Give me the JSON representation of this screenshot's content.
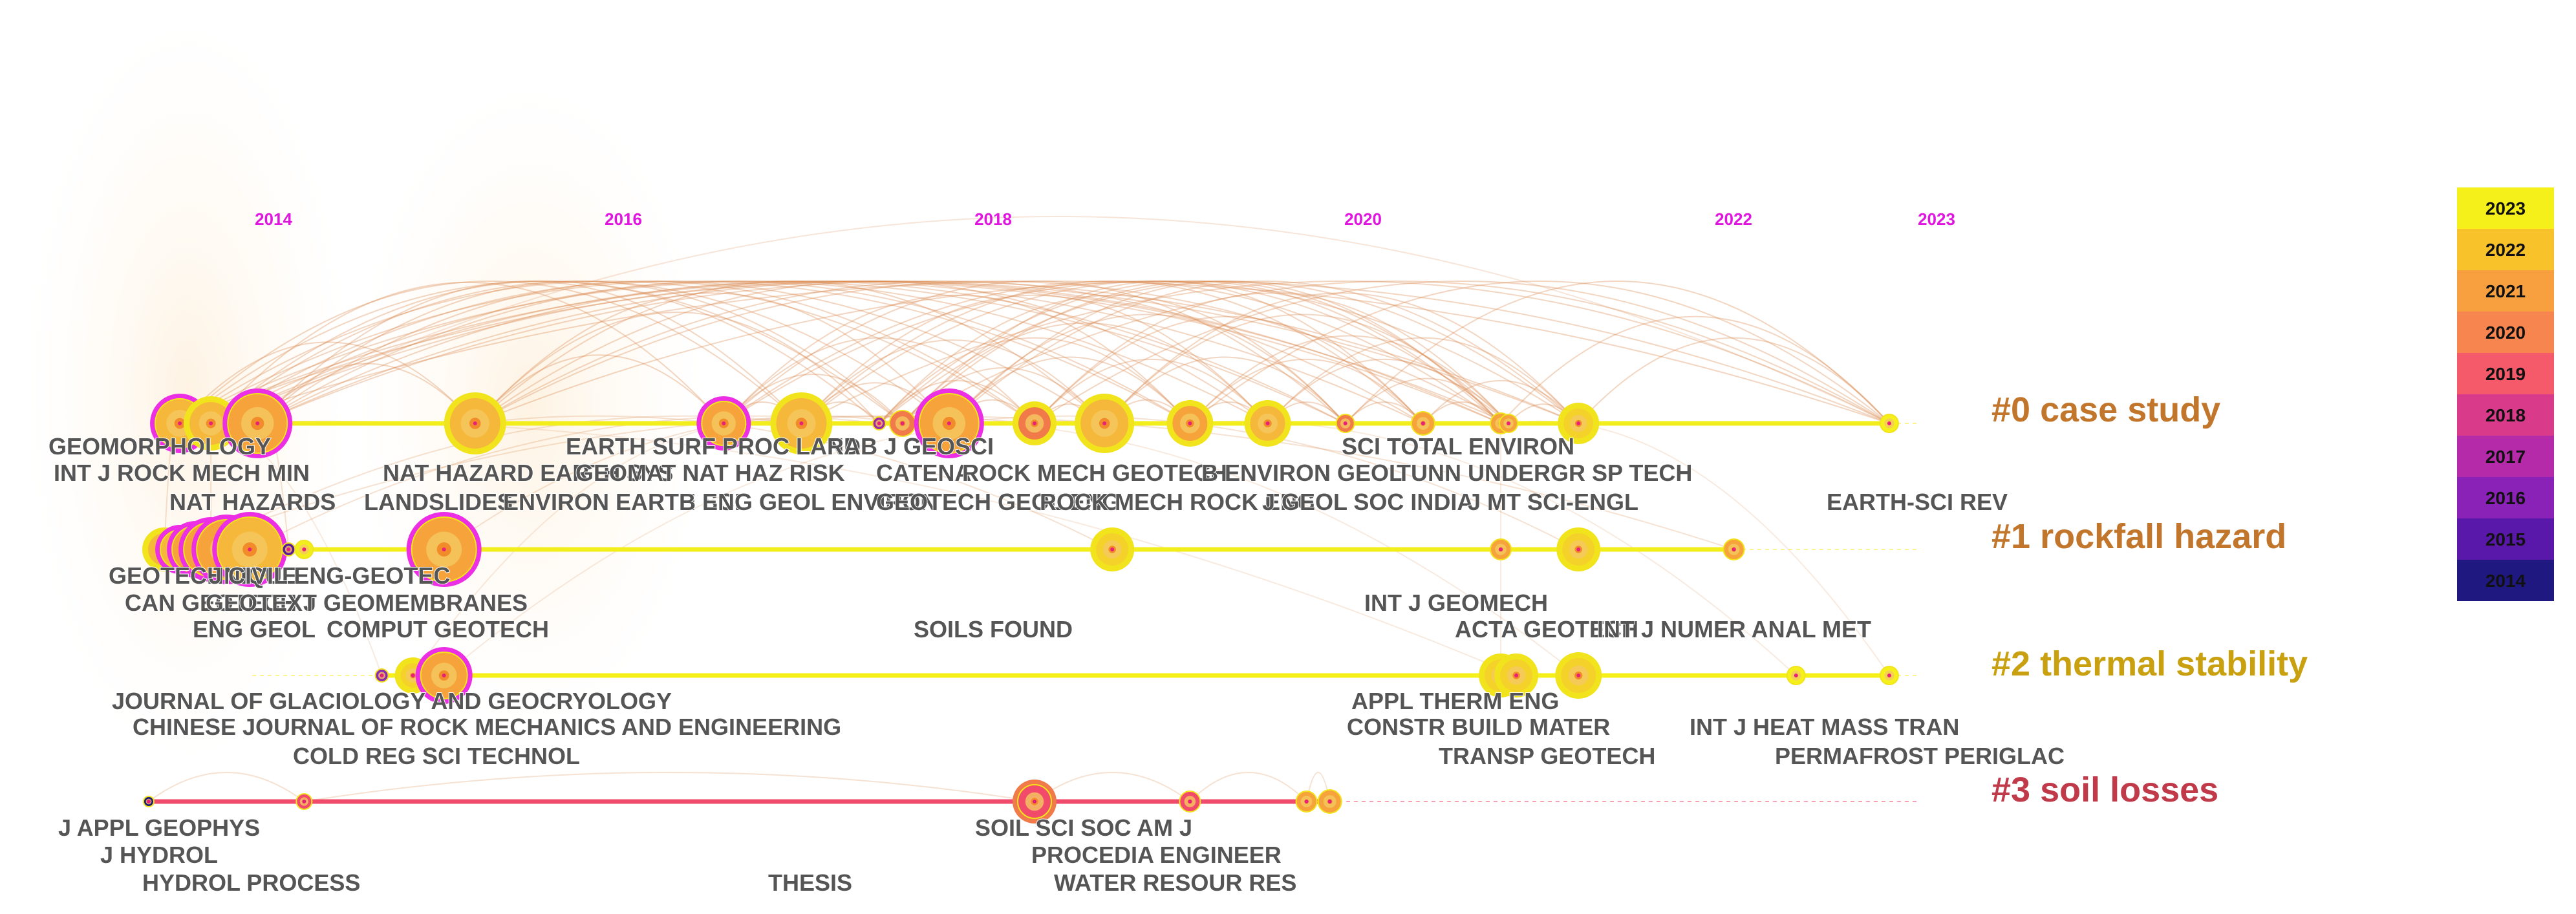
{
  "chart_data": {
    "type": "timeline",
    "x_ticks": [
      "2014",
      "2016",
      "2018",
      "2020",
      "2022",
      "2023"
    ],
    "x_tick_values": [
      2014,
      2016,
      2018,
      2020,
      2022,
      2023
    ],
    "x_range": [
      2012.8,
      2024.2
    ],
    "clusters": [
      {
        "id": 0,
        "label": "#0 case study",
        "color": "#c2762c",
        "line_color": "#f2ee1c",
        "nodes": [
          {
            "year": 2013.0,
            "size": 38,
            "color": "#f5b83a",
            "ring": "#ec2fe4"
          },
          {
            "year": 2013.2,
            "size": 34,
            "color": "#f5b83a",
            "ring": "#f2e41c"
          },
          {
            "year": 2013.5,
            "size": 46,
            "color": "#f5a33a",
            "ring": "#ec2fe4"
          },
          {
            "year": 2014.9,
            "size": 40,
            "color": "#f5b83a",
            "ring": "#f2e41c"
          },
          {
            "year": 2016.5,
            "size": 34,
            "color": "#f5a33a",
            "ring": "#ec2fe4"
          },
          {
            "year": 2017.0,
            "size": 40,
            "color": "#f5b83a",
            "ring": "#f2e41c"
          },
          {
            "year": 2017.5,
            "size": 10,
            "color": "#a02aa0",
            "ring": "none"
          },
          {
            "year": 2017.65,
            "size": 20,
            "color": "#f07a4a",
            "ring": "none"
          },
          {
            "year": 2017.95,
            "size": 46,
            "color": "#f5a33a",
            "ring": "#ec2fe4"
          },
          {
            "year": 2018.5,
            "size": 26,
            "color": "#f07a4a",
            "ring": "#f2e41c"
          },
          {
            "year": 2018.95,
            "size": 38,
            "color": "#f5b83a",
            "ring": "#f2e41c"
          },
          {
            "year": 2019.5,
            "size": 28,
            "color": "#f5a33a",
            "ring": "#f2e41c"
          },
          {
            "year": 2020.0,
            "size": 28,
            "color": "#f5b83a",
            "ring": "#f2e41c"
          },
          {
            "year": 2020.5,
            "size": 14,
            "color": "#f07a4a",
            "ring": "none"
          },
          {
            "year": 2021.0,
            "size": 18,
            "color": "#f5a33a",
            "ring": "none"
          },
          {
            "year": 2021.5,
            "size": 16,
            "color": "#f5a33a",
            "ring": "none"
          },
          {
            "year": 2021.55,
            "size": 14,
            "color": "#f5a33a",
            "ring": "none"
          },
          {
            "year": 2022.0,
            "size": 24,
            "color": "#f5d22a",
            "ring": "#f2e41c"
          },
          {
            "year": 2024.0,
            "size": 14,
            "color": "#f6f01a",
            "ring": "none"
          }
        ]
      },
      {
        "id": 1,
        "label": "#1 rockfall hazard",
        "color": "#c2762c",
        "line_color": "#f2ee1c",
        "nodes": [
          {
            "year": 2012.9,
            "size": 26,
            "color": "#f5b83a",
            "ring": "#f2e41c"
          },
          {
            "year": 2013.0,
            "size": 30,
            "color": "#f5b83a",
            "ring": "#ec2fe4"
          },
          {
            "year": 2013.1,
            "size": 36,
            "color": "#f5a33a",
            "ring": "#ec2fe4"
          },
          {
            "year": 2013.2,
            "size": 42,
            "color": "#f5a33a",
            "ring": "#ec2fe4"
          },
          {
            "year": 2013.3,
            "size": 46,
            "color": "#f5a33a",
            "ring": "#ec2fe4"
          },
          {
            "year": 2013.45,
            "size": 50,
            "color": "#f5b83a",
            "ring": "#ec2fe4"
          },
          {
            "year": 2013.7,
            "size": 10,
            "color": "#5a1a9a",
            "ring": "none"
          },
          {
            "year": 2013.8,
            "size": 14,
            "color": "#f2ee1c",
            "ring": "none"
          },
          {
            "year": 2014.7,
            "size": 50,
            "color": "#f5a33a",
            "ring": "#ec2fe4"
          },
          {
            "year": 2019.0,
            "size": 26,
            "color": "#f5d22a",
            "ring": "#f2e41c"
          },
          {
            "year": 2021.5,
            "size": 16,
            "color": "#f5a33a",
            "ring": "none"
          },
          {
            "year": 2022.0,
            "size": 26,
            "color": "#f5d22a",
            "ring": "#f2e41c"
          },
          {
            "year": 2023.0,
            "size": 16,
            "color": "#f5a33a",
            "ring": "none"
          }
        ]
      },
      {
        "id": 2,
        "label": "#2 thermal stability",
        "color": "#c8a010",
        "line_color": "#f6f01a",
        "nodes": [
          {
            "year": 2014.3,
            "size": 10,
            "color": "#8a2ab0",
            "ring": "none"
          },
          {
            "year": 2014.5,
            "size": 20,
            "color": "#f5d22a",
            "ring": "#f2e41c"
          },
          {
            "year": 2014.7,
            "size": 36,
            "color": "#f5a33a",
            "ring": "#ec2fe4"
          },
          {
            "year": 2021.5,
            "size": 26,
            "color": "#f5d22a",
            "ring": "#f2e41c"
          },
          {
            "year": 2021.6,
            "size": 26,
            "color": "#f5d22a",
            "ring": "#f2e41c"
          },
          {
            "year": 2022.0,
            "size": 28,
            "color": "#f5d22a",
            "ring": "#f2e41c"
          },
          {
            "year": 2023.4,
            "size": 14,
            "color": "#f6f01a",
            "ring": "none"
          },
          {
            "year": 2024.0,
            "size": 14,
            "color": "#f6f01a",
            "ring": "none"
          }
        ]
      },
      {
        "id": 3,
        "label": "#3 soil losses",
        "color": "#c03a4a",
        "line_color": "#f24a6a",
        "nodes": [
          {
            "year": 2012.8,
            "size": 8,
            "color": "#1a1a7a",
            "ring": "none"
          },
          {
            "year": 2013.8,
            "size": 12,
            "color": "#f24a6a",
            "ring": "none"
          },
          {
            "year": 2018.5,
            "size": 26,
            "color": "#f24a6a",
            "ring": "#f07a4a"
          },
          {
            "year": 2019.5,
            "size": 16,
            "color": "#f24a6a",
            "ring": "none"
          },
          {
            "year": 2020.25,
            "size": 16,
            "color": "#f5a33a",
            "ring": "none"
          },
          {
            "year": 2020.4,
            "size": 18,
            "color": "#f5a33a",
            "ring": "none"
          }
        ]
      }
    ],
    "node_labels": [
      "GEOMORPHOLOGY",
      "INT J ROCK MECH MIN",
      "NAT HAZARDS",
      "NAT HAZARD EARTH SYS",
      "LANDSLIDES",
      "GEOMAT NAT HAZ RISK",
      "EARTH SURF PROC LAND",
      "ENVIRON EARTH SCI",
      "B ENG GEOL ENVIRON",
      "ARAB J GEOSCI",
      "CATENA",
      "ROCK MECH GEOTECH",
      "GEOTECH GEOL ENG",
      "ROCK MECH ROCK ENG",
      "B ENVIRON GEOL",
      "J GEOL SOC INDIA",
      "SCI TOTAL ENVIRON",
      "TUNN UNDERGR SP TECH",
      "J MT SCI-ENGL",
      "EARTH-SCI REV",
      "GEOTECHNIQUE",
      "J CIVIL ENG-GEOTEC",
      "CAN GEOTECH J",
      "GEOTEXT GEOMEMBRANES",
      "ENG GEOL",
      "COMPUT GEOTECH",
      "SOILS FOUND",
      "INT J GEOMECH",
      "ACTA GEOTECH",
      "INT J NUMER ANAL MET",
      "JOURNAL OF GLACIOLOGY AND GEOCRYOLOGY",
      "CHINESE JOURNAL OF ROCK MECHANICS AND ENGINEERING",
      "COLD REG SCI TECHNOL",
      "APPL THERM ENG",
      "CONSTR BUILD MATER",
      "TRANSP GEOTECH",
      "INT J HEAT MASS TRAN",
      "PERMAFROST PERIGLAC",
      "J APPL GEOPHYS",
      "J HYDROL",
      "HYDROL PROCESS",
      "THESIS",
      "SOIL SCI SOC AM J",
      "PROCEDIA ENGINEER",
      "WATER RESOUR RES"
    ],
    "legend": {
      "placement": "right",
      "entries": [
        {
          "year": "2023",
          "color": "#f6f01a"
        },
        {
          "year": "2022",
          "color": "#f8c22a"
        },
        {
          "year": "2021",
          "color": "#f8a040"
        },
        {
          "year": "2020",
          "color": "#f78550"
        },
        {
          "year": "2019",
          "color": "#f45a6a"
        },
        {
          "year": "2018",
          "color": "#da3a8a"
        },
        {
          "year": "2017",
          "color": "#b42aa8"
        },
        {
          "year": "2016",
          "color": "#8a22b8"
        },
        {
          "year": "2015",
          "color": "#5a18aa"
        },
        {
          "year": "2014",
          "color": "#1e1880"
        }
      ]
    },
    "tick_color": "#e015e0",
    "arc_color": "#d98a50"
  }
}
